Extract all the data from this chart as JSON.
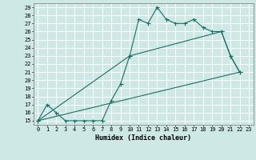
{
  "title": "",
  "xlabel": "Humidex (Indice chaleur)",
  "xlim": [
    -0.5,
    23.5
  ],
  "ylim": [
    14.5,
    29.5
  ],
  "xticks": [
    0,
    1,
    2,
    3,
    4,
    5,
    6,
    7,
    8,
    9,
    10,
    11,
    12,
    13,
    14,
    15,
    16,
    17,
    18,
    19,
    20,
    21,
    22,
    23
  ],
  "yticks": [
    15,
    16,
    17,
    18,
    19,
    20,
    21,
    22,
    23,
    24,
    25,
    26,
    27,
    28,
    29
  ],
  "bg_color": "#cde8e5",
  "grid_color": "#ffffff",
  "line_color": "#1a6e64",
  "line1_x": [
    0,
    1,
    2,
    3,
    4,
    5,
    6,
    7,
    8,
    9,
    10,
    11,
    12,
    13,
    14,
    15,
    16,
    17,
    18,
    19,
    20,
    21,
    22
  ],
  "line1_y": [
    15,
    17,
    16,
    15,
    15,
    15,
    15,
    15,
    17.5,
    19.5,
    23,
    27.5,
    27,
    29,
    27.5,
    27,
    27,
    27.5,
    26.5,
    26,
    26,
    23,
    21
  ],
  "line2_x": [
    0,
    10,
    20,
    21,
    22
  ],
  "line2_y": [
    15,
    23,
    26,
    23,
    21
  ],
  "line3_x": [
    0,
    22
  ],
  "line3_y": [
    15,
    21
  ],
  "marker_color": "#1a6e64"
}
